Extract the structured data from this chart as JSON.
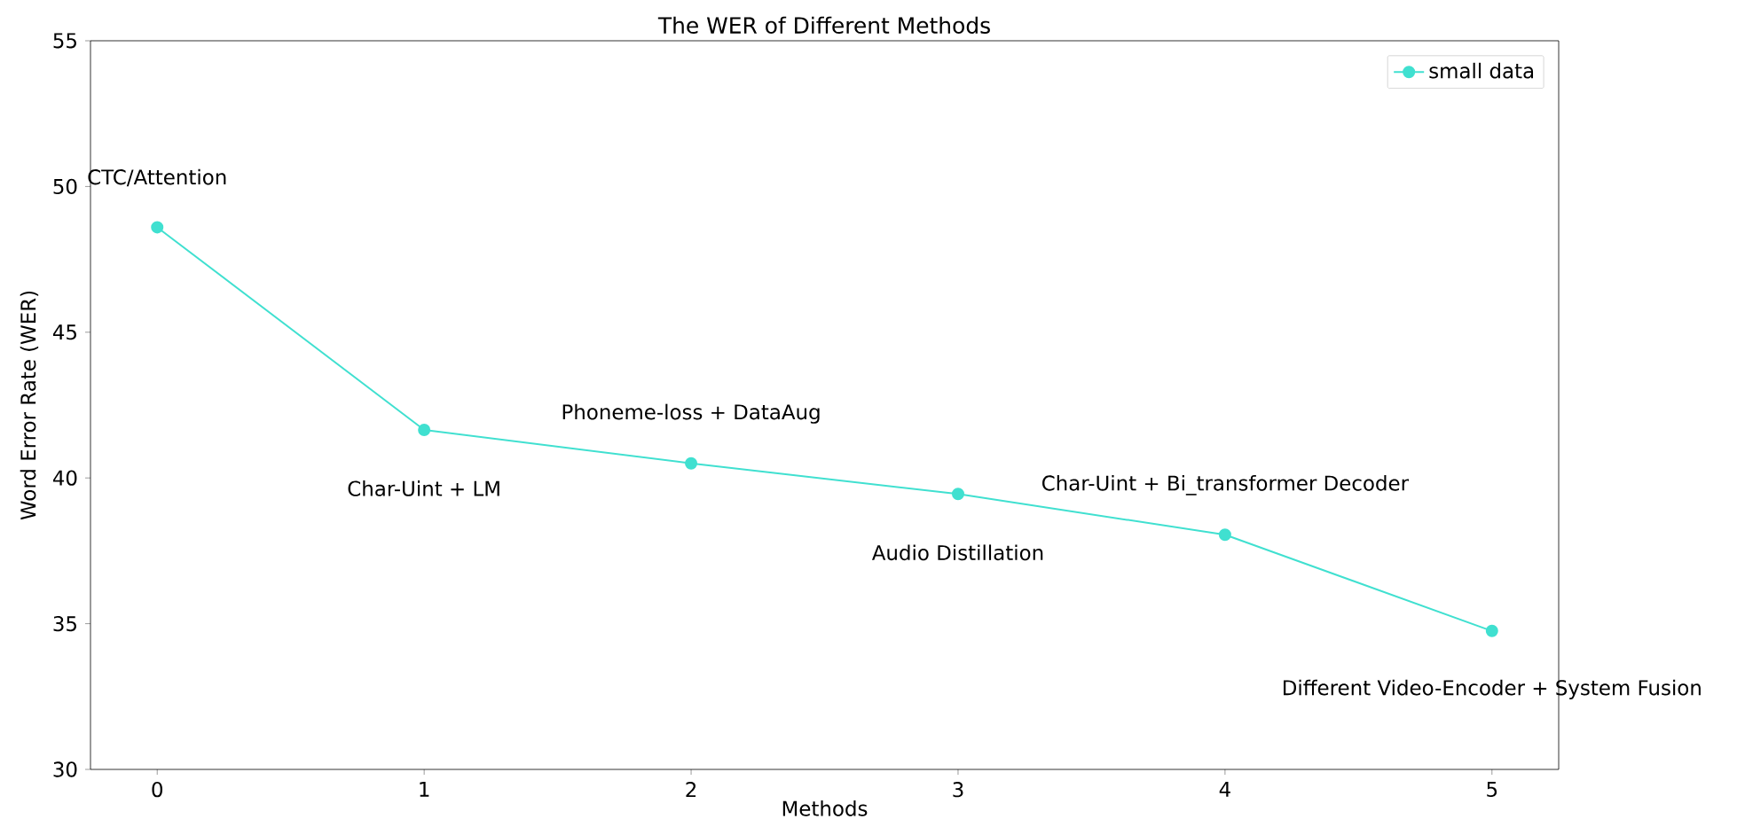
{
  "chart_data": {
    "type": "line",
    "title": "The WER of Different Methods",
    "xlabel": "Methods",
    "ylabel": "Word Error Rate (WER)",
    "x": [
      0,
      1,
      2,
      3,
      4,
      5
    ],
    "series": [
      {
        "name": "small data",
        "color": "#40e0d0",
        "values": [
          48.6,
          41.65,
          40.5,
          39.45,
          38.05,
          34.75
        ]
      }
    ],
    "xlim": [
      -0.25,
      5.25
    ],
    "xticks": [
      0,
      1,
      2,
      3,
      4,
      5
    ],
    "ylim": [
      30,
      55
    ],
    "yticks": [
      30,
      35,
      40,
      45,
      50,
      55
    ],
    "marker": "circle",
    "line_style": "solid",
    "legend": "top right",
    "annotations": [
      {
        "text": "CTC/Attention",
        "x": 0,
        "y": 48.6
      },
      {
        "text": "Char-Uint + LM",
        "x": 1,
        "y": 41.65
      },
      {
        "text": "Phoneme-loss + DataAug",
        "x": 2,
        "y": 40.5
      },
      {
        "text": "Audio Distillation",
        "x": 3,
        "y": 39.45
      },
      {
        "text": "Char-Uint + Bi_transformer Decoder",
        "x": 4,
        "y": 38.05
      },
      {
        "text": "Different Video-Encoder + System Fusion",
        "x": 5,
        "y": 34.75
      }
    ]
  }
}
